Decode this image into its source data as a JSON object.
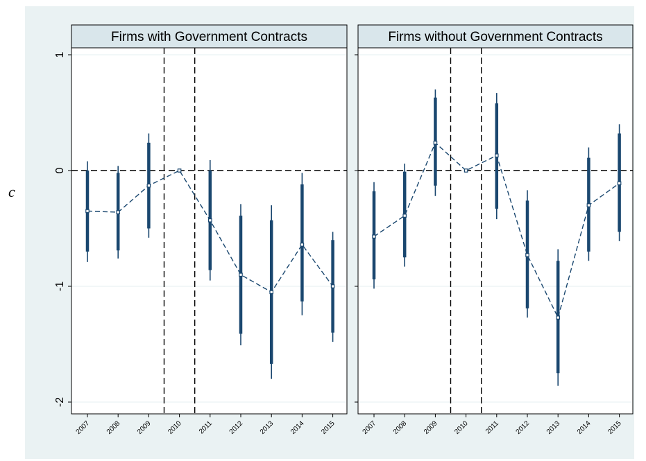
{
  "chart_data": {
    "type": "scatter",
    "ylabel": "c",
    "ylim": [
      -2,
      1
    ],
    "yticks": [
      1,
      0,
      -1,
      -2
    ],
    "categories": [
      "2007",
      "2008",
      "2009",
      "2010",
      "2011",
      "2012",
      "2013",
      "2014",
      "2015"
    ],
    "colors": {
      "outer_bg": "#eaf2f3",
      "strip_bg": "#d9e6eb",
      "series": "#1a476f",
      "grid": "#eaf2f3"
    },
    "reference_lines": {
      "y": 0,
      "x_between": [
        [
          "2009",
          "2010"
        ],
        [
          "2010",
          "2011"
        ]
      ]
    },
    "panels": [
      {
        "title": "Firms with Government Contracts",
        "values": [
          -0.35,
          -0.36,
          -0.13,
          0.0,
          -0.43,
          -0.9,
          -1.05,
          -0.64,
          -1.0
        ],
        "ci90": [
          [
            -0.7,
            0.0
          ],
          [
            -0.69,
            -0.02
          ],
          [
            -0.5,
            0.24
          ],
          [
            0.0,
            0.0
          ],
          [
            -0.86,
            0.0
          ],
          [
            -1.41,
            -0.39
          ],
          [
            -1.67,
            -0.43
          ],
          [
            -1.13,
            -0.12
          ],
          [
            -1.4,
            -0.6
          ]
        ],
        "ci95": [
          [
            -0.79,
            0.08
          ],
          [
            -0.76,
            0.04
          ],
          [
            -0.58,
            0.32
          ],
          [
            0.0,
            0.0
          ],
          [
            -0.95,
            0.09
          ],
          [
            -1.51,
            -0.29
          ],
          [
            -1.8,
            -0.3
          ],
          [
            -1.25,
            -0.02
          ],
          [
            -1.48,
            -0.53
          ]
        ]
      },
      {
        "title": "Firms without Government Contracts",
        "values": [
          -0.57,
          -0.39,
          0.24,
          0.0,
          0.13,
          -0.73,
          -1.27,
          -0.3,
          -0.11
        ],
        "ci90": [
          [
            -0.94,
            -0.18
          ],
          [
            -0.75,
            -0.01
          ],
          [
            -0.13,
            0.63
          ],
          [
            0.0,
            0.0
          ],
          [
            -0.33,
            0.58
          ],
          [
            -1.19,
            -0.26
          ],
          [
            -1.75,
            -0.78
          ],
          [
            -0.7,
            0.11
          ],
          [
            -0.53,
            0.32
          ]
        ],
        "ci95": [
          [
            -1.02,
            -0.1
          ],
          [
            -0.83,
            0.06
          ],
          [
            -0.22,
            0.7
          ],
          [
            0.0,
            0.0
          ],
          [
            -0.42,
            0.67
          ],
          [
            -1.27,
            -0.17
          ],
          [
            -1.86,
            -0.68
          ],
          [
            -0.78,
            0.2
          ],
          [
            -0.61,
            0.4
          ]
        ]
      }
    ]
  }
}
